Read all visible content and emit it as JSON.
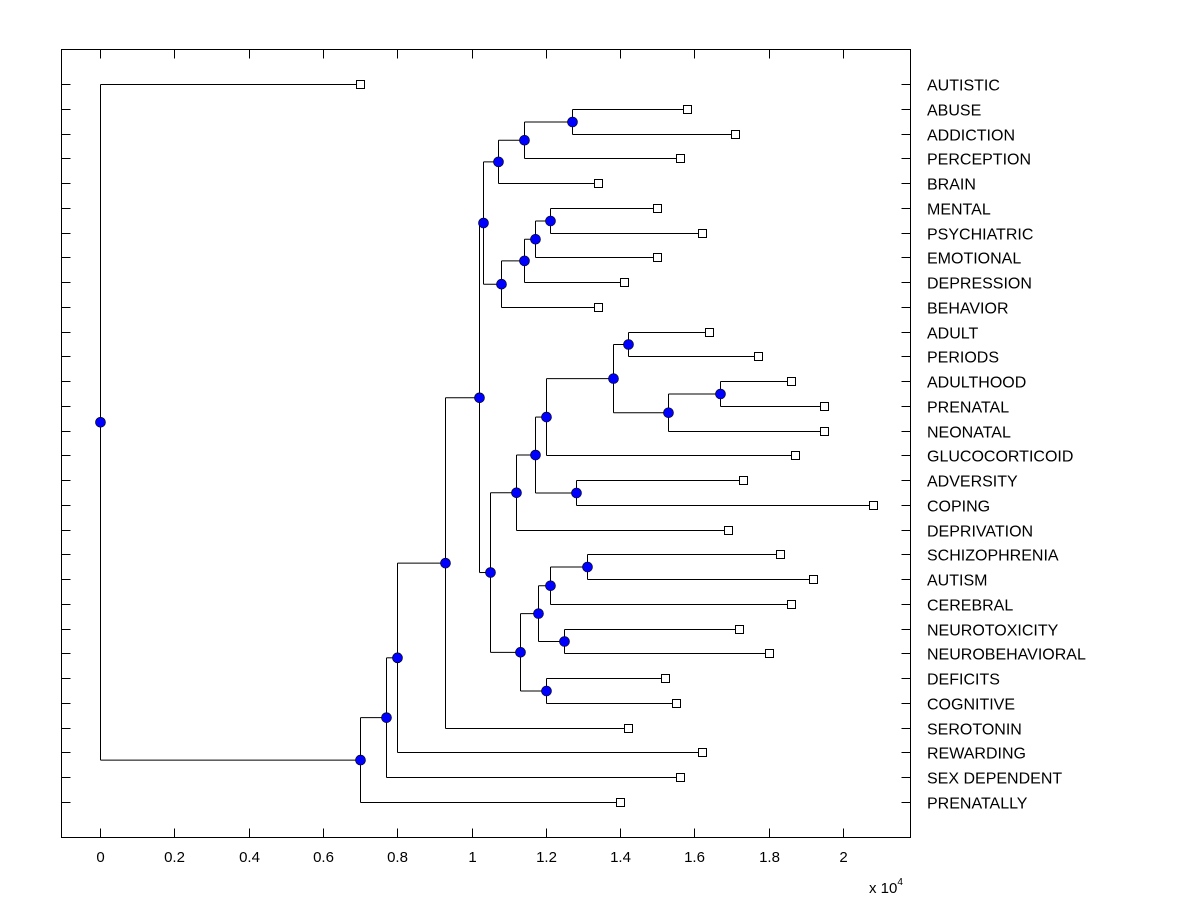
{
  "chart_data": {
    "type": "dendrogram",
    "title": "",
    "xlabel": "",
    "ylabel": "",
    "x_multiplier_label": "x 10",
    "x_multiplier_exponent": "4",
    "xlim": [
      -0.1,
      2.18
    ],
    "xticks": [
      0,
      0.2,
      0.4,
      0.6,
      0.8,
      1,
      1.2,
      1.4,
      1.6,
      1.8,
      2
    ],
    "xtick_labels": [
      "0",
      "0.2",
      "0.4",
      "0.6",
      "0.8",
      "1",
      "1.2",
      "1.4",
      "1.6",
      "1.8",
      "2"
    ],
    "grid": false,
    "colors": {
      "node": "#0000ff",
      "leaf_fill": "#ffffff",
      "line": "#000000"
    },
    "leaves": [
      {
        "label": "AUTISTIC",
        "x": 0.7
      },
      {
        "label": "ABUSE",
        "x": 1.58
      },
      {
        "label": "ADDICTION",
        "x": 1.71
      },
      {
        "label": "PERCEPTION",
        "x": 1.56
      },
      {
        "label": "BRAIN",
        "x": 1.34
      },
      {
        "label": "MENTAL",
        "x": 1.5
      },
      {
        "label": "PSYCHIATRIC",
        "x": 1.62
      },
      {
        "label": "EMOTIONAL",
        "x": 1.5
      },
      {
        "label": "DEPRESSION",
        "x": 1.41
      },
      {
        "label": "BEHAVIOR",
        "x": 1.34
      },
      {
        "label": "ADULT",
        "x": 1.64
      },
      {
        "label": "PERIODS",
        "x": 1.77
      },
      {
        "label": "ADULTHOOD",
        "x": 1.86
      },
      {
        "label": "PRENATAL",
        "x": 1.95
      },
      {
        "label": "NEONATAL",
        "x": 1.95
      },
      {
        "label": "GLUCOCORTICOID",
        "x": 1.87
      },
      {
        "label": "ADVERSITY",
        "x": 1.73
      },
      {
        "label": "COPING",
        "x": 2.08
      },
      {
        "label": "DEPRIVATION",
        "x": 1.69
      },
      {
        "label": "SCHIZOPHRENIA",
        "x": 1.83
      },
      {
        "label": "AUTISM",
        "x": 1.92
      },
      {
        "label": "CEREBRAL",
        "x": 1.86
      },
      {
        "label": "NEUROTOXICITY",
        "x": 1.72
      },
      {
        "label": "NEUROBEHAVIORAL",
        "x": 1.8
      },
      {
        "label": "DEFICITS",
        "x": 1.52
      },
      {
        "label": "COGNITIVE",
        "x": 1.55
      },
      {
        "label": "SEROTONIN",
        "x": 1.42
      },
      {
        "label": "REWARDING",
        "x": 1.62
      },
      {
        "label": "SEX DEPENDENT",
        "x": 1.56
      },
      {
        "label": "PRENATALLY",
        "x": 1.4
      }
    ],
    "tree": {
      "x": 0.0,
      "children": [
        {
          "leaf": 0
        },
        {
          "x": 0.7,
          "children": [
            {
              "x": 0.77,
              "children": [
                {
                  "x": 0.8,
                  "children": [
                    {
                      "x": 0.93,
                      "children": [
                        {
                          "x": 1.02,
                          "children": [
                            {
                              "x": 1.03,
                              "children": [
                                {
                                  "x": 1.07,
                                  "children": [
                                    {
                                      "x": 1.14,
                                      "children": [
                                        {
                                          "x": 1.27,
                                          "children": [
                                            {
                                              "leaf": 1
                                            },
                                            {
                                              "leaf": 2
                                            }
                                          ]
                                        },
                                        {
                                          "leaf": 3
                                        }
                                      ]
                                    },
                                    {
                                      "leaf": 4
                                    }
                                  ]
                                },
                                {
                                  "x": 1.08,
                                  "children": [
                                    {
                                      "x": 1.14,
                                      "children": [
                                        {
                                          "x": 1.17,
                                          "children": [
                                            {
                                              "x": 1.21,
                                              "children": [
                                                {
                                                  "leaf": 5
                                                },
                                                {
                                                  "leaf": 6
                                                }
                                              ]
                                            },
                                            {
                                              "leaf": 7
                                            }
                                          ]
                                        },
                                        {
                                          "leaf": 8
                                        }
                                      ]
                                    },
                                    {
                                      "leaf": 9
                                    }
                                  ]
                                }
                              ]
                            },
                            {
                              "x": 1.05,
                              "children": [
                                {
                                  "x": 1.12,
                                  "children": [
                                    {
                                      "x": 1.17,
                                      "children": [
                                        {
                                          "x": 1.2,
                                          "children": [
                                            {
                                              "x": 1.38,
                                              "children": [
                                                {
                                                  "x": 1.42,
                                                  "children": [
                                                    {
                                                      "leaf": 10
                                                    },
                                                    {
                                                      "leaf": 11
                                                    }
                                                  ]
                                                },
                                                {
                                                  "x": 1.53,
                                                  "children": [
                                                    {
                                                      "x": 1.67,
                                                      "children": [
                                                        {
                                                          "leaf": 12
                                                        },
                                                        {
                                                          "leaf": 13
                                                        }
                                                      ]
                                                    },
                                                    {
                                                      "leaf": 14
                                                    }
                                                  ]
                                                }
                                              ]
                                            },
                                            {
                                              "leaf": 15
                                            }
                                          ]
                                        },
                                        {
                                          "x": 1.28,
                                          "children": [
                                            {
                                              "leaf": 16
                                            },
                                            {
                                              "leaf": 17
                                            }
                                          ]
                                        }
                                      ]
                                    },
                                    {
                                      "leaf": 18
                                    }
                                  ]
                                },
                                {
                                  "x": 1.13,
                                  "children": [
                                    {
                                      "x": 1.18,
                                      "children": [
                                        {
                                          "x": 1.21,
                                          "children": [
                                            {
                                              "x": 1.31,
                                              "children": [
                                                {
                                                  "leaf": 19
                                                },
                                                {
                                                  "leaf": 20
                                                }
                                              ]
                                            },
                                            {
                                              "leaf": 21
                                            }
                                          ]
                                        },
                                        {
                                          "x": 1.25,
                                          "children": [
                                            {
                                              "leaf": 22
                                            },
                                            {
                                              "leaf": 23
                                            }
                                          ]
                                        }
                                      ]
                                    },
                                    {
                                      "x": 1.2,
                                      "children": [
                                        {
                                          "leaf": 24
                                        },
                                        {
                                          "leaf": 25
                                        }
                                      ]
                                    }
                                  ]
                                }
                              ]
                            }
                          ]
                        },
                        {
                          "leaf": 26
                        }
                      ]
                    },
                    {
                      "leaf": 27
                    }
                  ]
                },
                {
                  "leaf": 28
                }
              ]
            },
            {
              "leaf": 29
            }
          ]
        }
      ]
    }
  }
}
